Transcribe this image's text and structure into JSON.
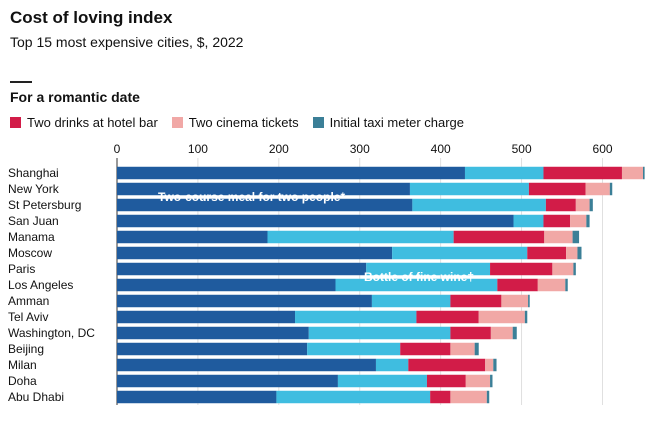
{
  "header": {
    "title": "Cost of loving index",
    "subtitle": "Top 15 most expensive cities, $, 2022",
    "section_label": "For a romantic date"
  },
  "chart_data": {
    "type": "bar",
    "orientation": "horizontal",
    "stacked": true,
    "xlim": [
      0,
      650
    ],
    "x_ticks": [
      0,
      100,
      200,
      300,
      400,
      500,
      600
    ],
    "categories": [
      "Shanghai",
      "New York",
      "St Petersburg",
      "San Juan",
      "Manama",
      "Moscow",
      "Paris",
      "Los Angeles",
      "Amman",
      "Tel Aviv",
      "Washington, DC",
      "Beijing",
      "Milan",
      "Doha",
      "Abu Dhabi"
    ],
    "series": [
      {
        "name": "",
        "values": [
          430,
          362,
          365,
          490,
          186,
          340,
          308,
          270,
          315,
          220,
          237,
          235,
          320,
          273,
          197
        ]
      },
      {
        "name": "",
        "values": [
          97,
          147,
          165,
          37,
          230,
          167,
          153,
          200,
          97,
          150,
          175,
          115,
          40,
          110,
          190
        ]
      },
      {
        "name": "Two drinks at hotel bar",
        "values": [
          97,
          70,
          37,
          33,
          112,
          48,
          77,
          50,
          63,
          77,
          50,
          62,
          95,
          48,
          25
        ]
      },
      {
        "name": "Two cinema tickets",
        "values": [
          26,
          30,
          17,
          20,
          35,
          14,
          26,
          34,
          33,
          57,
          27,
          30,
          10,
          30,
          45
        ]
      },
      {
        "name": "Initial taxi meter charge",
        "values": [
          2,
          3,
          4,
          4,
          8,
          5,
          3,
          3,
          2,
          3,
          5,
          5,
          4,
          3,
          3
        ]
      }
    ],
    "annotations": [
      {
        "text": "Two-course meal for two people*",
        "category": "New York"
      },
      {
        "text": "Bottle of fine wine†",
        "category": "Paris"
      }
    ],
    "colors": {
      "meal": "#1f5b9e",
      "wine": "#3fbde0",
      "drinks": "#d21c48",
      "cinema": "#f1a8a6",
      "taxi": "#3b7f97"
    },
    "grid": true,
    "legend_position": "top-left"
  }
}
